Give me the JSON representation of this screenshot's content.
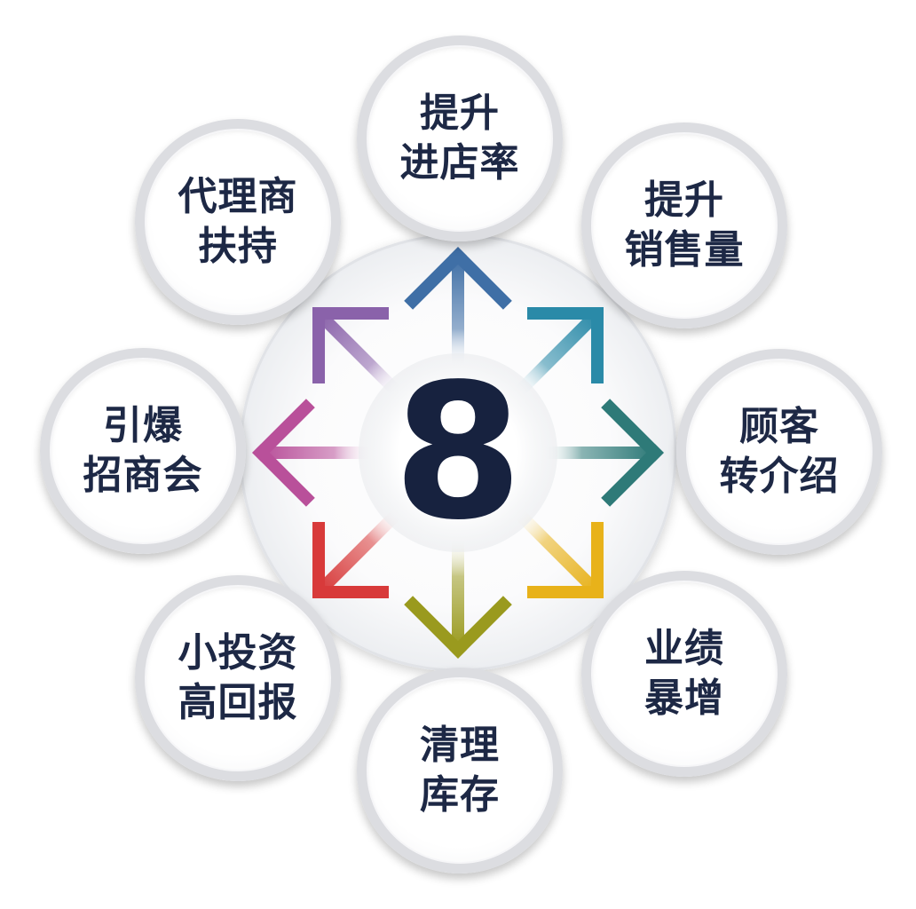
{
  "center": {
    "number": "8"
  },
  "nodes": [
    {
      "id": "top",
      "lines": [
        "提升",
        "进店率"
      ]
    },
    {
      "id": "top-right",
      "lines": [
        "提升",
        "销售量"
      ]
    },
    {
      "id": "right",
      "lines": [
        "顾客",
        "转介绍"
      ]
    },
    {
      "id": "bottom-right",
      "lines": [
        "业绩",
        "暴增"
      ]
    },
    {
      "id": "bottom",
      "lines": [
        "清理",
        "库存"
      ]
    },
    {
      "id": "bottom-left",
      "lines": [
        "小投资",
        "高回报"
      ]
    },
    {
      "id": "left",
      "lines": [
        "引爆",
        "招商会"
      ]
    },
    {
      "id": "top-left",
      "lines": [
        "代理商",
        "扶持"
      ]
    }
  ],
  "arrow_colors": {
    "up": "#3f6fa6",
    "up-right": "#2a8aa8",
    "right": "#2e7a78",
    "down-right": "#e8b21a",
    "down": "#9a9a1e",
    "down-left": "#d83a3a",
    "left": "#b9509a",
    "up-left": "#8a62aa"
  }
}
